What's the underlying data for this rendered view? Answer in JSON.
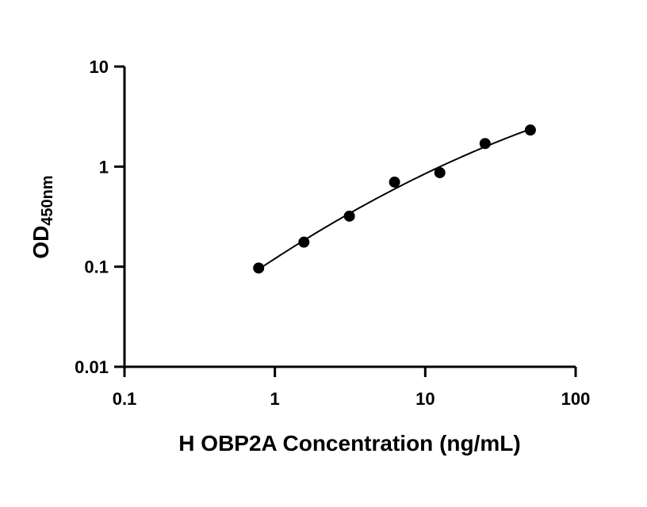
{
  "chart_data": {
    "type": "scatter",
    "title": "",
    "xlabel": "H OBP2A Concentration (ng/mL)",
    "ylabel_main": "OD",
    "ylabel_sub": "450nm",
    "x_scale": "log",
    "y_scale": "log",
    "xlim": [
      0.1,
      100
    ],
    "ylim": [
      0.01,
      10
    ],
    "x_ticks": [
      0.1,
      1,
      10,
      100
    ],
    "x_tick_labels": [
      "0.1",
      "1",
      "10",
      "100"
    ],
    "y_ticks": [
      0.01,
      0.1,
      1,
      10
    ],
    "y_tick_labels": [
      "0.01",
      "0.1",
      "1",
      "10"
    ],
    "grid": false,
    "legend": "none",
    "points": [
      {
        "x": 0.78,
        "y": 0.097
      },
      {
        "x": 1.56,
        "y": 0.176
      },
      {
        "x": 3.13,
        "y": 0.32
      },
      {
        "x": 6.25,
        "y": 0.7
      },
      {
        "x": 12.5,
        "y": 0.87
      },
      {
        "x": 25,
        "y": 1.7
      },
      {
        "x": 50,
        "y": 2.32
      }
    ],
    "fit_curve": true,
    "colors": {
      "points": "#000000",
      "curve": "#000000",
      "axes": "#000000"
    }
  }
}
